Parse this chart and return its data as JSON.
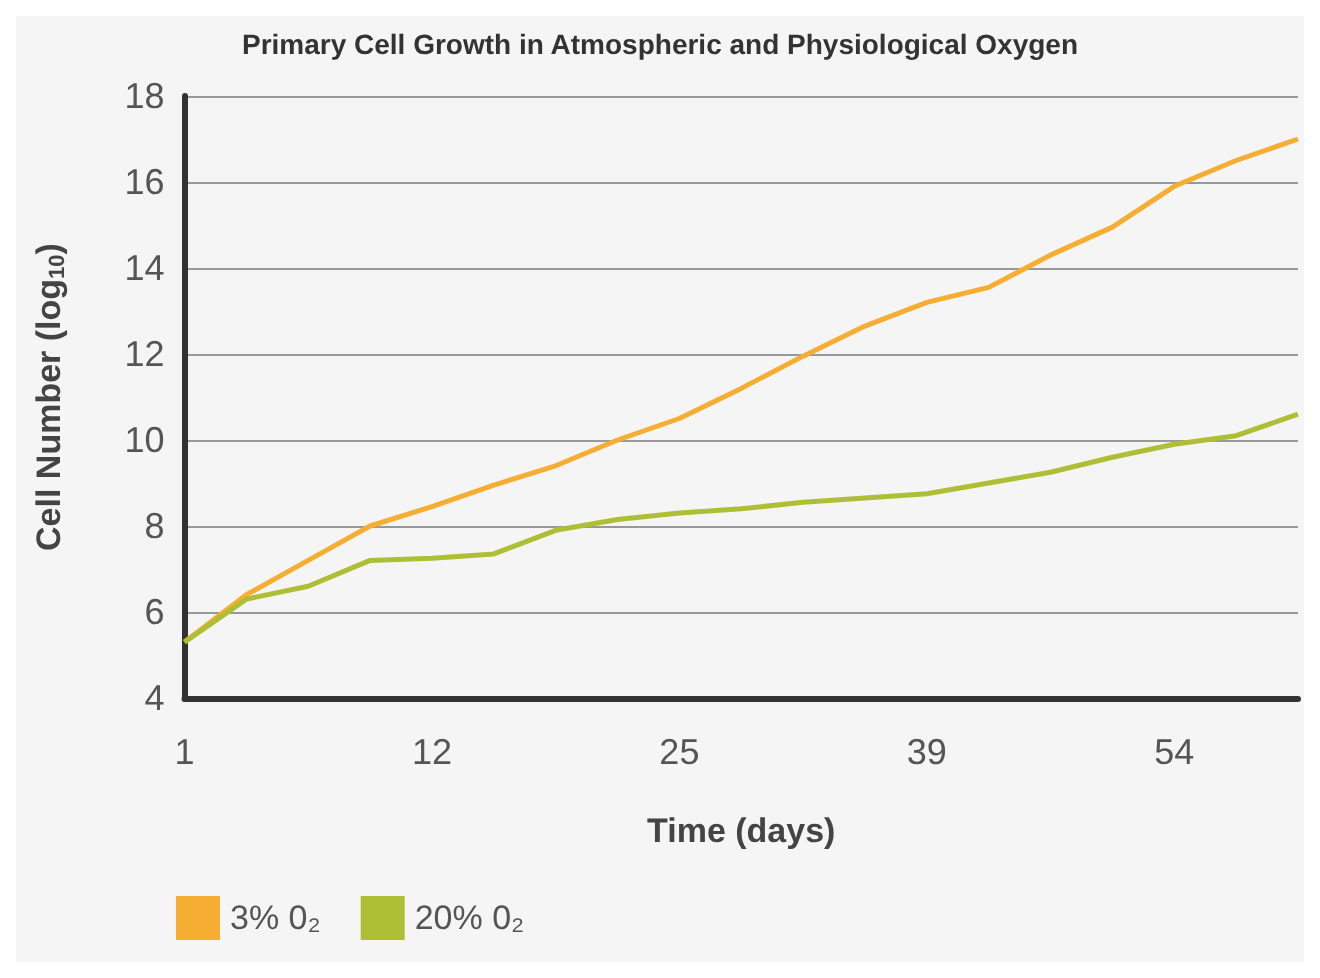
{
  "chart_data": {
    "type": "line",
    "title": "Primary Cell Growth in Atmospheric and Physiological Oxygen",
    "xlabel": "Time (days)",
    "ylabel": "Cell Number (log$_{10}$)",
    "categories": [
      "1",
      null,
      null,
      null,
      "12",
      null,
      null,
      null,
      "25",
      null,
      null,
      null,
      "39",
      null,
      null,
      null,
      "54",
      null,
      null
    ],
    "series": [
      {
        "name": "3% 0₂",
        "color": "#f5ae31",
        "values": [
          5.3,
          6.4,
          7.2,
          8.0,
          8.45,
          8.95,
          9.4,
          10.0,
          10.5,
          11.2,
          11.95,
          12.65,
          13.2,
          13.55,
          14.3,
          14.95,
          15.9,
          16.5,
          17.0
        ]
      },
      {
        "name": "20% 0₂",
        "color": "#afbf35",
        "values": [
          5.3,
          6.3,
          6.6,
          7.2,
          7.25,
          7.35,
          7.9,
          8.15,
          8.3,
          8.4,
          8.55,
          8.65,
          8.75,
          9.0,
          9.25,
          9.6,
          9.9,
          10.1,
          10.6
        ]
      }
    ],
    "ylim": [
      4,
      18
    ],
    "yticks": [
      4,
      6,
      8,
      10,
      12,
      14,
      16,
      18
    ],
    "grid": "y",
    "legend": "bottom left",
    "marker": "none",
    "line_style": "solid"
  }
}
